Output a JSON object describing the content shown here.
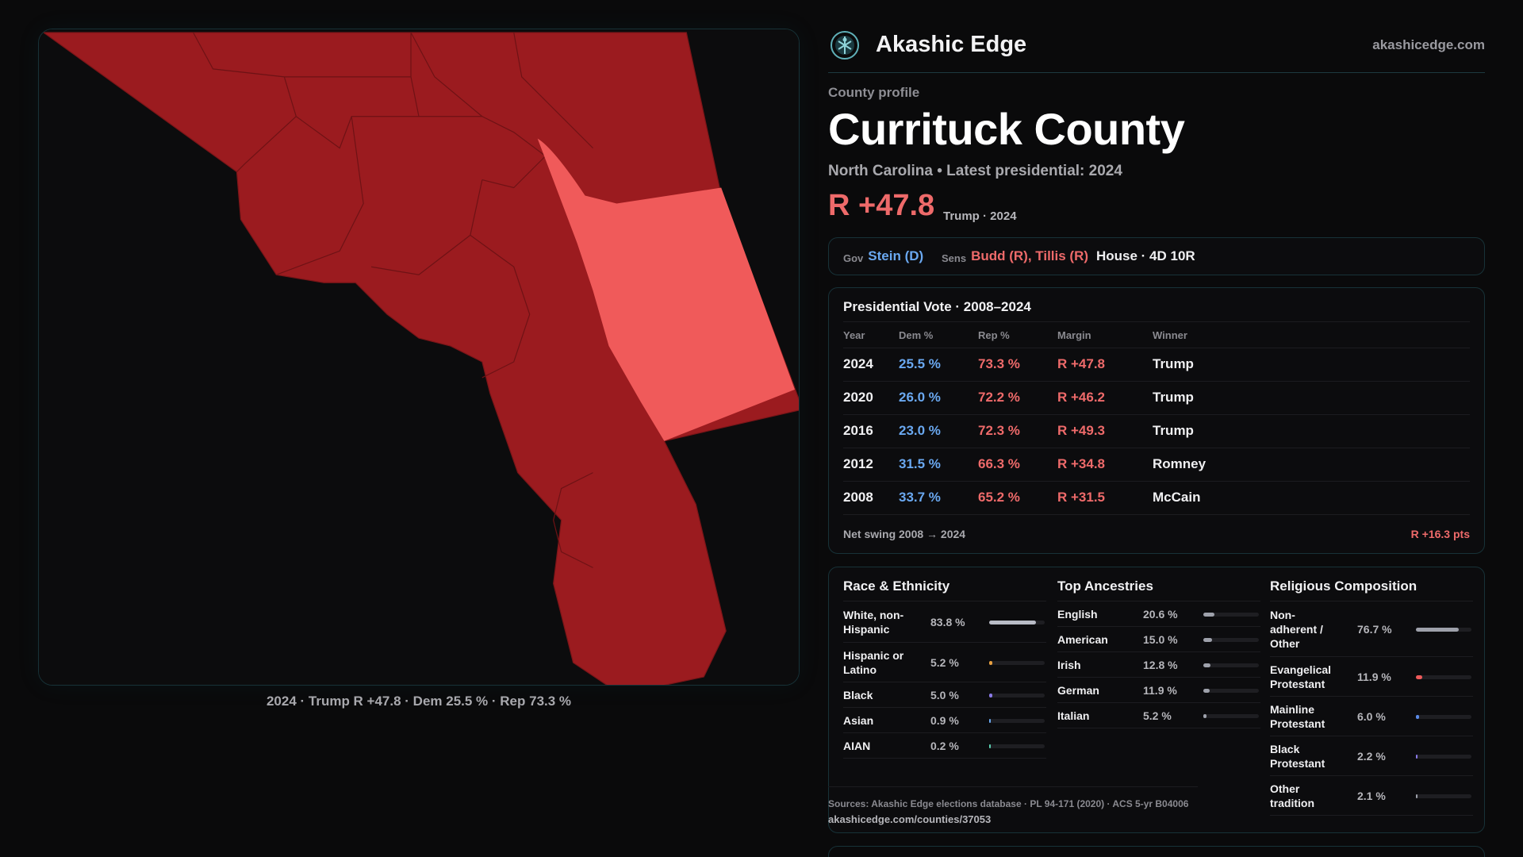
{
  "brand": {
    "name": "Akashic Edge",
    "url": "akashicedge.com"
  },
  "county": {
    "eyebrow": "County profile",
    "name": "Currituck County",
    "subtitle": "North Carolina • Latest presidential: 2024",
    "margin": "R +47.8",
    "margin_note": "Trump · 2024"
  },
  "officials": {
    "gov_label": "Gov",
    "gov": "Stein (D)",
    "sens_label": "Sens",
    "sens": "Budd (R), Tillis (R)",
    "house": "House · 4D 10R"
  },
  "map": {
    "caption": "2024 · Trump R +47.8 · Dem 25.5 % · Rep 73.3 %"
  },
  "votes": {
    "title": "Presidential Vote · 2008–2024",
    "headers": {
      "year": "Year",
      "dem": "Dem %",
      "rep": "Rep %",
      "margin": "Margin",
      "winner": "Winner"
    },
    "rows": [
      {
        "year": "2024",
        "dem": "25.5 %",
        "rep": "73.3 %",
        "margin": "R +47.8",
        "winner": "Trump"
      },
      {
        "year": "2020",
        "dem": "26.0 %",
        "rep": "72.2 %",
        "margin": "R +46.2",
        "winner": "Trump"
      },
      {
        "year": "2016",
        "dem": "23.0 %",
        "rep": "72.3 %",
        "margin": "R +49.3",
        "winner": "Trump"
      },
      {
        "year": "2012",
        "dem": "31.5 %",
        "rep": "66.3 %",
        "margin": "R +34.8",
        "winner": "Romney"
      },
      {
        "year": "2008",
        "dem": "33.7 %",
        "rep": "65.2 %",
        "margin": "R +31.5",
        "winner": "McCain"
      }
    ],
    "swing_label": "Net swing 2008 → 2024",
    "swing_value": "R +16.3 pts"
  },
  "race": {
    "title": "Race & Ethnicity",
    "items": [
      {
        "label": "White, non-Hispanic",
        "pct": "83.8 %",
        "share": 0.838,
        "color": "#b9bcc6"
      },
      {
        "label": "Hispanic or Latino",
        "pct": "5.2 %",
        "share": 0.052,
        "color": "#e8a040"
      },
      {
        "label": "Black",
        "pct": "5.0 %",
        "share": 0.05,
        "color": "#8a7ae8"
      },
      {
        "label": "Asian",
        "pct": "0.9 %",
        "share": 0.009,
        "color": "#6aa8f0"
      },
      {
        "label": "AIAN",
        "pct": "0.2 %",
        "share": 0.002,
        "color": "#5ad0b0"
      }
    ]
  },
  "ancestry": {
    "title": "Top Ancestries",
    "items": [
      {
        "label": "English",
        "pct": "20.6 %",
        "share": 0.206,
        "color": "#9ea1ab"
      },
      {
        "label": "American",
        "pct": "15.0 %",
        "share": 0.15,
        "color": "#9ea1ab"
      },
      {
        "label": "Irish",
        "pct": "12.8 %",
        "share": 0.128,
        "color": "#9ea1ab"
      },
      {
        "label": "German",
        "pct": "11.9 %",
        "share": 0.119,
        "color": "#9ea1ab"
      },
      {
        "label": "Italian",
        "pct": "5.2 %",
        "share": 0.052,
        "color": "#9ea1ab"
      }
    ]
  },
  "religion": {
    "title": "Religious Composition",
    "items": [
      {
        "label": "Non-adherent / Other",
        "pct": "76.7 %",
        "share": 0.767,
        "color": "#9ea1ab"
      },
      {
        "label": "Evangelical Protestant",
        "pct": "11.9 %",
        "share": 0.119,
        "color": "#ee5a5a"
      },
      {
        "label": "Mainline Protestant",
        "pct": "6.0 %",
        "share": 0.06,
        "color": "#5a8ae8"
      },
      {
        "label": "Black Protestant",
        "pct": "2.2 %",
        "share": 0.022,
        "color": "#8a7ae8"
      },
      {
        "label": "Other tradition",
        "pct": "2.1 %",
        "share": 0.021,
        "color": "#9ea1ab"
      }
    ]
  },
  "sources": {
    "line1": "Sources: Akashic Edge elections database · PL 94-171 (2020) · ACS 5-yr B04006",
    "line2": "akashicedge.com/counties/37053"
  },
  "colors": {
    "accent": "#ee6a6a",
    "dem": "#6aa8f0",
    "county_fill": "#9b1b1f",
    "highlight_fill": "#f05a5a"
  }
}
